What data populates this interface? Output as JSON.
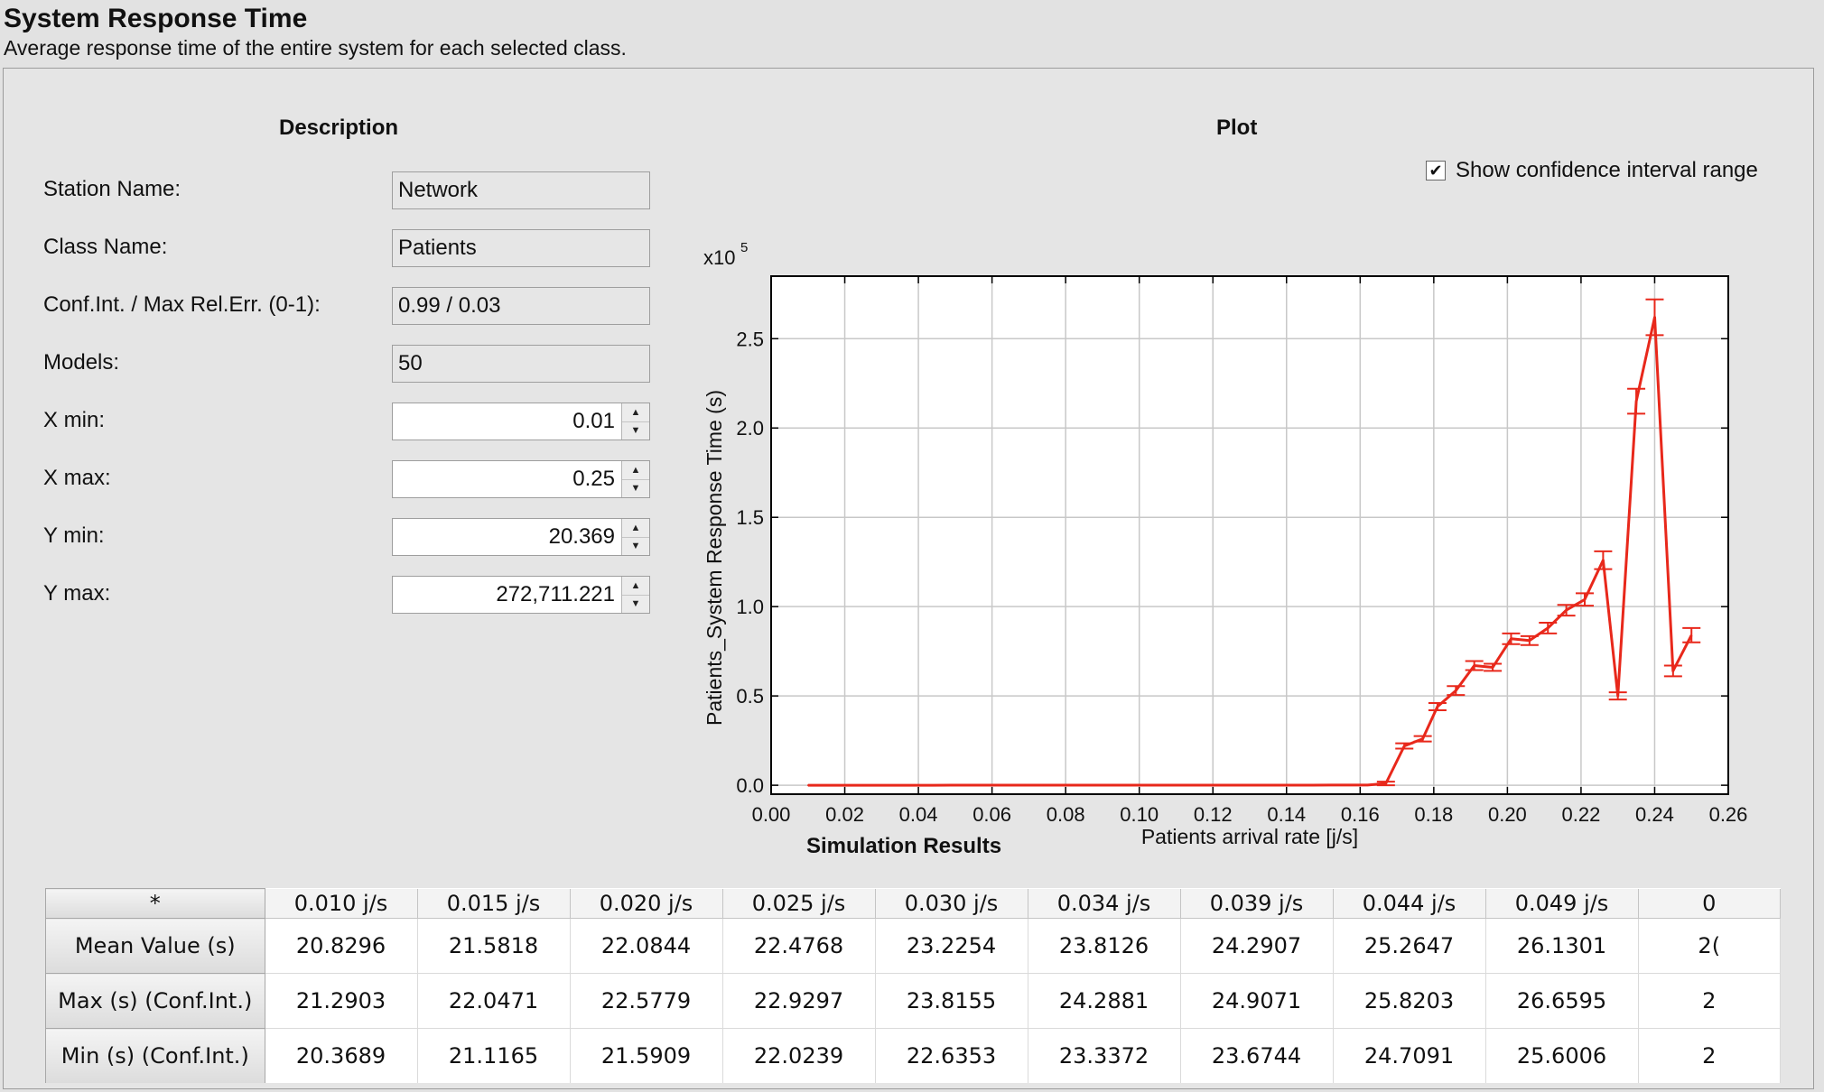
{
  "header": {
    "title": "System Response Time",
    "subtitle": "Average response time of the entire system for each selected class."
  },
  "description": {
    "title": "Description",
    "fields": [
      {
        "label": "Station Name:",
        "value": "Network"
      },
      {
        "label": "Class Name:",
        "value": "Patients"
      },
      {
        "label": "Conf.Int. / Max Rel.Err. (0-1):",
        "value": "0.99 / 0.03"
      },
      {
        "label": "Models:",
        "value": "50"
      }
    ],
    "spinners": [
      {
        "label": "X min:",
        "value": "0.01"
      },
      {
        "label": "X max:",
        "value": "0.25"
      },
      {
        "label": "Y min:",
        "value": "20.369"
      },
      {
        "label": "Y max:",
        "value": "272,711.221"
      }
    ]
  },
  "plot": {
    "title": "Plot",
    "ci_label": "Show confidence interval range",
    "ci_checked": true,
    "scale_label": "x10",
    "scale_exp": "5"
  },
  "chart_data": {
    "type": "line",
    "xlabel": "Patients arrival rate [j/s]",
    "ylabel": "Patients_System Response Time (s)",
    "xlim": [
      0,
      0.26
    ],
    "ylim": [
      -0.05,
      2.85
    ],
    "y_unit_multiplier": "x10^5",
    "xticks": [
      "0.00",
      "0.02",
      "0.04",
      "0.06",
      "0.08",
      "0.10",
      "0.12",
      "0.14",
      "0.16",
      "0.18",
      "0.20",
      "0.22",
      "0.24",
      "0.26"
    ],
    "yticks": [
      "0.0",
      "0.5",
      "1.0",
      "1.5",
      "2.0",
      "2.5"
    ],
    "grid": true,
    "color": "#e8281b",
    "series": [
      {
        "x": [
          0.01,
          0.015,
          0.02,
          0.025,
          0.03,
          0.034,
          0.039,
          0.044,
          0.049,
          0.054,
          0.059,
          0.064,
          0.069,
          0.074,
          0.079,
          0.083,
          0.088,
          0.093,
          0.098,
          0.103,
          0.108,
          0.113,
          0.118,
          0.123,
          0.128,
          0.132,
          0.137,
          0.142,
          0.147,
          0.152,
          0.157,
          0.162,
          0.167,
          0.172,
          0.177,
          0.181,
          0.186,
          0.191,
          0.196,
          0.201,
          0.206,
          0.211,
          0.216,
          0.221,
          0.226,
          0.23,
          0.235,
          0.24,
          0.245,
          0.25
        ],
        "y": [
          0.0002,
          0.0002,
          0.0002,
          0.0002,
          0.0002,
          0.0002,
          0.0002,
          0.0002,
          0.0003,
          0.0003,
          0.0003,
          0.0003,
          0.0003,
          0.0003,
          0.0003,
          0.0003,
          0.0003,
          0.0004,
          0.0004,
          0.0004,
          0.0004,
          0.0004,
          0.0005,
          0.0005,
          0.0005,
          0.0006,
          0.0006,
          0.0006,
          0.0007,
          0.0008,
          0.0009,
          0.0012,
          0.01,
          0.22,
          0.26,
          0.44,
          0.53,
          0.67,
          0.66,
          0.82,
          0.81,
          0.88,
          0.98,
          1.04,
          1.26,
          0.5,
          2.15,
          2.62,
          0.64,
          0.84
        ],
        "ci_half": [
          0,
          0,
          0,
          0,
          0,
          0,
          0,
          0,
          0,
          0,
          0,
          0,
          0,
          0,
          0,
          0,
          0,
          0,
          0,
          0,
          0,
          0,
          0,
          0,
          0,
          0,
          0,
          0,
          0,
          0,
          0,
          0,
          0.01,
          0.015,
          0.015,
          0.02,
          0.025,
          0.025,
          0.02,
          0.03,
          0.025,
          0.03,
          0.03,
          0.035,
          0.05,
          0.02,
          0.07,
          0.1,
          0.03,
          0.04
        ]
      }
    ]
  },
  "results": {
    "title": "Simulation Results",
    "corner": "*",
    "columns": [
      "0.010 j/s",
      "0.015 j/s",
      "0.020 j/s",
      "0.025 j/s",
      "0.030 j/s",
      "0.034 j/s",
      "0.039 j/s",
      "0.044 j/s",
      "0.049 j/s",
      "0"
    ],
    "rows": [
      {
        "label": "Mean Value (s)",
        "values": [
          "20.8296",
          "21.5818",
          "22.0844",
          "22.4768",
          "23.2254",
          "23.8126",
          "24.2907",
          "25.2647",
          "26.1301",
          "2("
        ]
      },
      {
        "label": "Max (s) (Conf.Int.)",
        "values": [
          "21.2903",
          "22.0471",
          "22.5779",
          "22.9297",
          "23.8155",
          "24.2881",
          "24.9071",
          "25.8203",
          "26.6595",
          "2"
        ]
      },
      {
        "label": "Min (s) (Conf.Int.)",
        "values": [
          "20.3689",
          "21.1165",
          "21.5909",
          "22.0239",
          "22.6353",
          "23.3372",
          "23.6744",
          "24.7091",
          "25.6006",
          "2"
        ]
      }
    ]
  }
}
